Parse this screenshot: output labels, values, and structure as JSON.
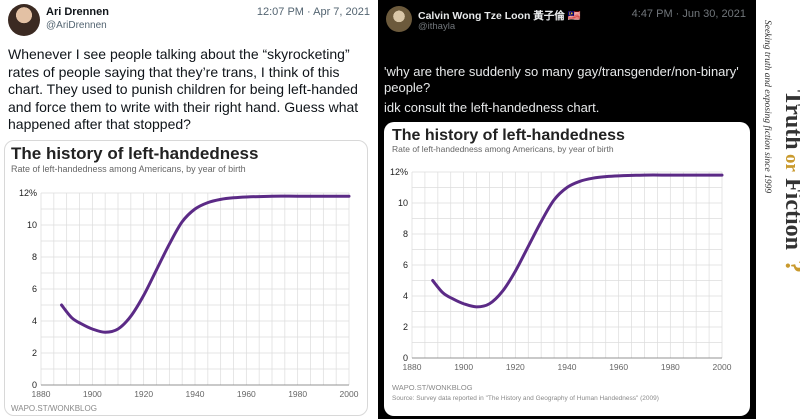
{
  "left_tweet": {
    "name": "Ari Drennen",
    "handle": "@AriDrennen",
    "time": "12:07 PM · Apr 7, 2021",
    "text": "Whenever I see people talking about the “skyrocketing” rates of people saying that they’re trans, I think of this chart. They used to punish children for being left-handed and force them to write with their right hand. Guess what happened after that stopped?",
    "chart": {
      "title": "The history of left-handedness",
      "subtitle": "Rate of left-handedness among Americans, by year of birth",
      "credit": "WAPO.ST/WONKBLOG"
    }
  },
  "right_tweet": {
    "name": "Calvin Wong Tze Loon 黃子倫 🇲🇾",
    "handle": "@ithayla",
    "time": "4:47 PM · Jun 30, 2021",
    "text": "'why are there suddenly so many gay/transgender/non-binary' people?",
    "text2": "idk consult the left-handedness chart.",
    "chart": {
      "title": "The history of left-handedness",
      "subtitle": "Rate of left-handedness among Americans, by year of birth",
      "credit": "WAPO.ST/WONKBLOG",
      "source": "Source: Survey data reported in \"The History and Geography of Human Handedness\" (2009)"
    }
  },
  "logo": {
    "wordmark_a": "Truth",
    "wordmark_o": "or",
    "wordmark_b": "Fiction",
    "tagline": "Seeking truth and exposing fiction since 1999",
    "colors": {
      "dark": "#333333",
      "accent": "#c99a2e"
    }
  },
  "chart_data": [
    {
      "type": "line",
      "title": "The history of left-handedness",
      "subtitle": "Rate of left-handedness among Americans, by year of birth",
      "xlabel": "",
      "ylabel": "",
      "xlim": [
        1880,
        2000
      ],
      "ylim": [
        0,
        12
      ],
      "x_ticks": [
        "1880",
        "1900",
        "1920",
        "1940",
        "1960",
        "1980",
        "2000"
      ],
      "y_ticks": [
        "0",
        "2",
        "4",
        "6",
        "8",
        "10",
        "12%"
      ],
      "series": [
        {
          "color": "#5b2a86",
          "x": [
            1888,
            1892,
            1896,
            1900,
            1905,
            1910,
            1915,
            1920,
            1925,
            1930,
            1935,
            1940,
            1945,
            1950,
            1955,
            1960,
            1970,
            1980,
            1990,
            2000
          ],
          "y": [
            5.0,
            4.2,
            3.8,
            3.5,
            3.3,
            3.5,
            4.3,
            5.6,
            7.2,
            8.8,
            10.2,
            11.0,
            11.4,
            11.6,
            11.7,
            11.75,
            11.8,
            11.8,
            11.8,
            11.8
          ]
        }
      ],
      "credit": "WAPO.ST/WONKBLOG",
      "grid": true
    },
    {
      "type": "line",
      "title": "The history of left-handedness",
      "subtitle": "Rate of left-handedness among Americans, by year of birth",
      "xlabel": "",
      "ylabel": "",
      "xlim": [
        1880,
        2000
      ],
      "ylim": [
        0,
        12
      ],
      "x_ticks": [
        "1880",
        "1900",
        "1920",
        "1940",
        "1960",
        "1980",
        "2000"
      ],
      "y_ticks": [
        "0",
        "2",
        "4",
        "6",
        "8",
        "10",
        "12%"
      ],
      "series": [
        {
          "color": "#5b2a86",
          "x": [
            1888,
            1892,
            1896,
            1900,
            1905,
            1910,
            1915,
            1920,
            1925,
            1930,
            1935,
            1940,
            1945,
            1950,
            1955,
            1960,
            1970,
            1980,
            1990,
            2000
          ],
          "y": [
            5.0,
            4.2,
            3.8,
            3.5,
            3.3,
            3.5,
            4.3,
            5.6,
            7.2,
            8.8,
            10.2,
            11.0,
            11.4,
            11.6,
            11.7,
            11.75,
            11.8,
            11.8,
            11.8,
            11.8
          ]
        }
      ],
      "credit": "WAPO.ST/WONKBLOG",
      "source": "Source: Survey data reported in \"The History and Geography of Human Handedness\" (2009)",
      "grid": true
    }
  ]
}
